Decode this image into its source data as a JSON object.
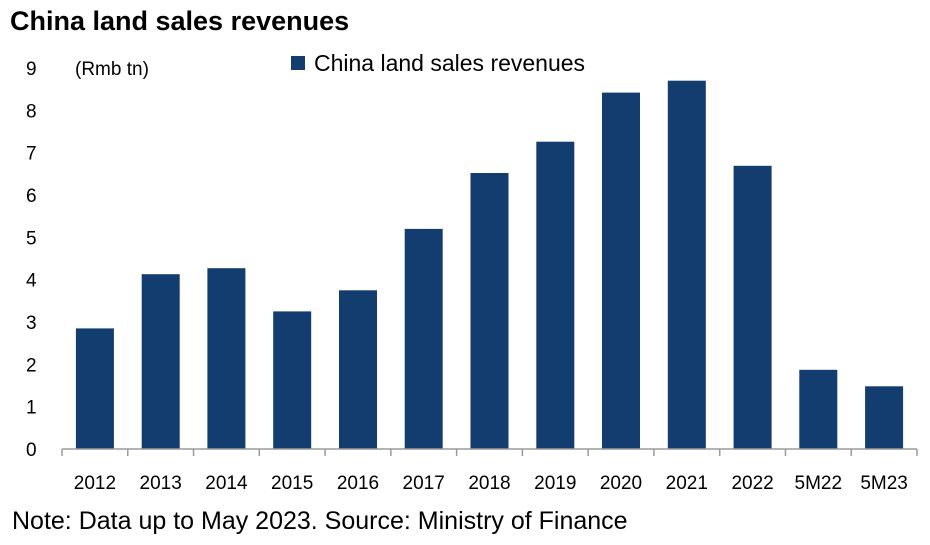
{
  "title": "China land sales revenues",
  "note": "Note: Data up to May 2023. Source: Ministry of Finance",
  "chart_data": {
    "type": "bar",
    "title": "China land sales revenues",
    "unit_label": "(Rmb tn)",
    "xlabel": "",
    "ylabel": "",
    "categories": [
      "2012",
      "2013",
      "2014",
      "2015",
      "2016",
      "2017",
      "2018",
      "2019",
      "2020",
      "2021",
      "2022",
      "5M22",
      "5M23"
    ],
    "series": [
      {
        "name": "China land sales revenues",
        "values": [
          2.85,
          4.13,
          4.27,
          3.25,
          3.75,
          5.2,
          6.52,
          7.26,
          8.42,
          8.7,
          6.69,
          1.87,
          1.48
        ],
        "color": "#123d6e"
      }
    ],
    "ylim": [
      0,
      9
    ],
    "yticks": [
      "0",
      "1",
      "2",
      "3",
      "4",
      "5",
      "6",
      "7",
      "8",
      "9"
    ],
    "grid": false,
    "legend_position": "top"
  }
}
